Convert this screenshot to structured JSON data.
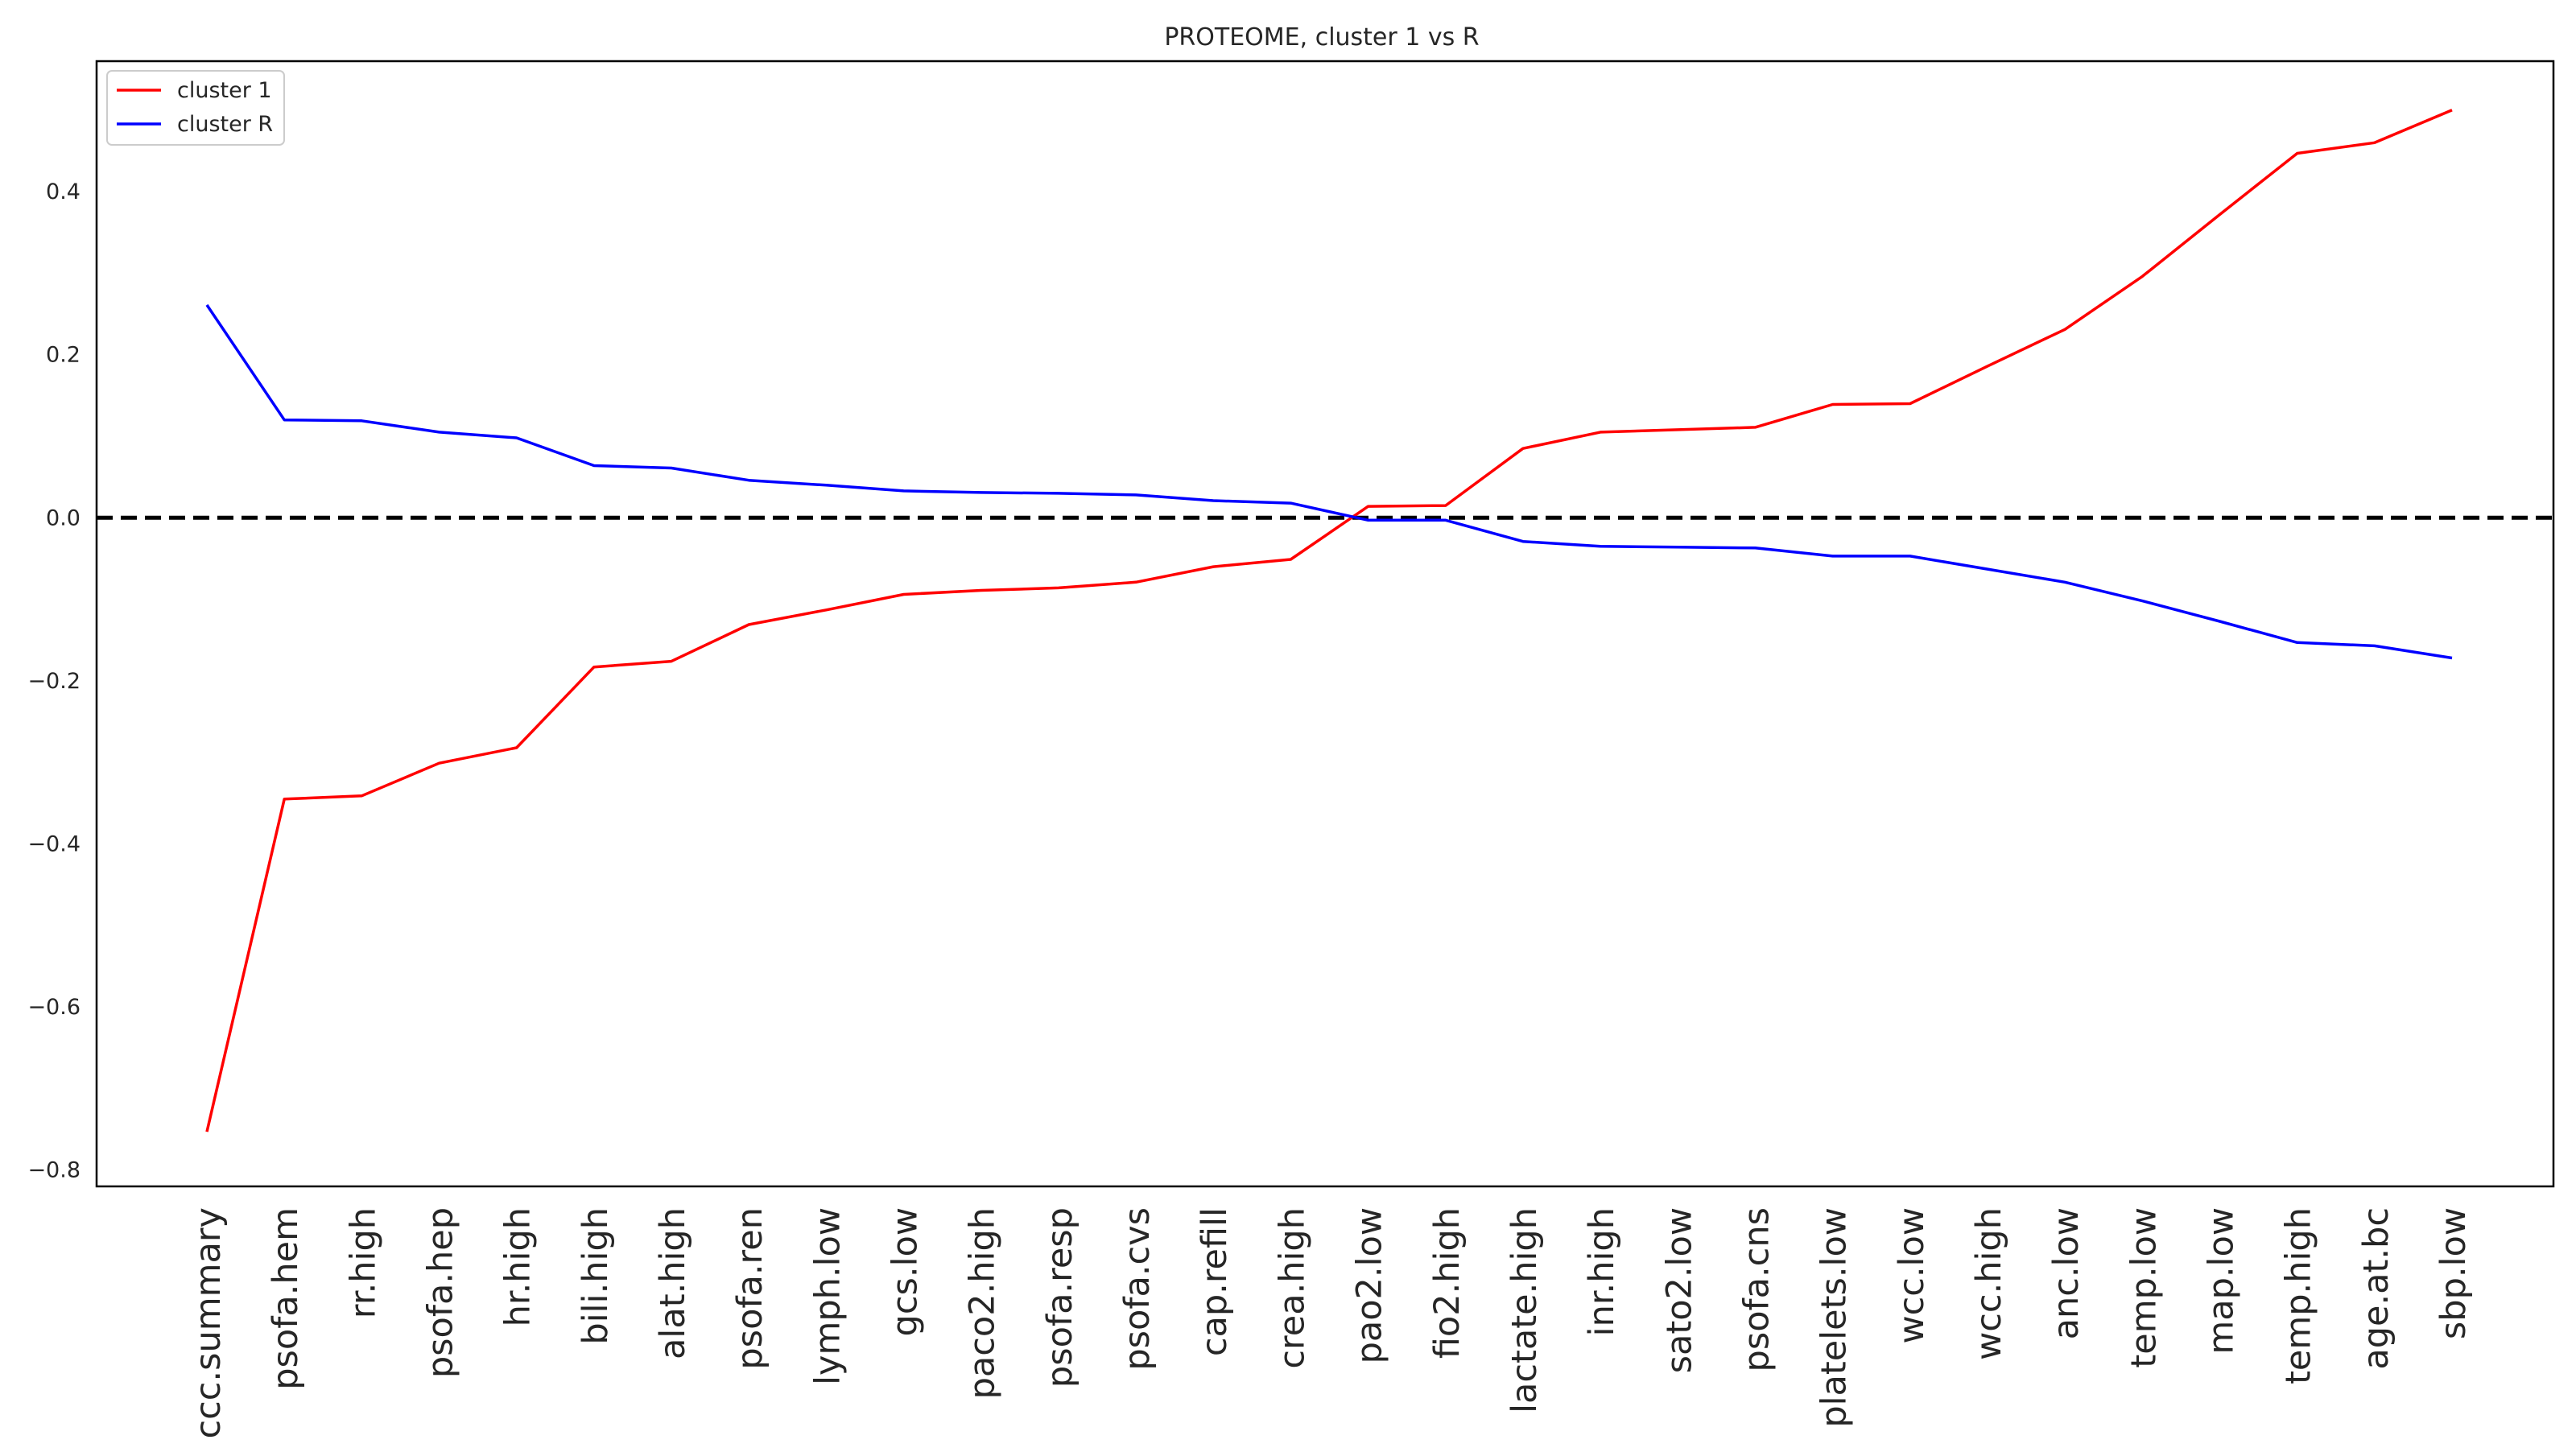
{
  "chart_data": {
    "type": "line",
    "title": "PROTEOME, cluster 1 vs R",
    "xlabel": "",
    "ylabel": "",
    "ylim": [
      -0.82,
      0.56
    ],
    "yticks": [
      -0.8,
      -0.6,
      -0.4,
      -0.2,
      0.0,
      0.2,
      0.4
    ],
    "ytick_labels": [
      "−0.8",
      "−0.6",
      "−0.4",
      "−0.2",
      "0.0",
      "0.2",
      "0.4"
    ],
    "grid": false,
    "legend_position": "top-left",
    "reference_line": {
      "y": 0.0,
      "style": "dashed",
      "color": "#000000"
    },
    "categories": [
      "ccc.summary",
      "psofa.hem",
      "rr.high",
      "psofa.hep",
      "hr.high",
      "bili.high",
      "alat.high",
      "psofa.ren",
      "lymph.low",
      "gcs.low",
      "paco2.high",
      "psofa.resp",
      "psofa.cvs",
      "cap.refill",
      "crea.high",
      "pao2.low",
      "fio2.high",
      "lactate.high",
      "inr.high",
      "sato2.low",
      "psofa.cns",
      "platelets.low",
      "wcc.low",
      "wcc.high",
      "anc.low",
      "temp.low",
      "map.low",
      "temp.high",
      "age.at.bc",
      "sbp.low"
    ],
    "series": [
      {
        "name": "cluster 1",
        "color": "#ff0000",
        "values": [
          -0.753,
          -0.345,
          -0.341,
          -0.301,
          -0.282,
          -0.183,
          -0.176,
          -0.131,
          -0.113,
          -0.094,
          -0.089,
          -0.086,
          -0.079,
          -0.06,
          -0.051,
          0.014,
          0.015,
          0.085,
          0.105,
          0.108,
          0.111,
          0.139,
          0.14,
          0.186,
          0.231,
          0.296,
          0.372,
          0.447,
          0.46,
          0.5
        ]
      },
      {
        "name": "cluster R",
        "color": "#0000ff",
        "values": [
          0.261,
          0.12,
          0.119,
          0.105,
          0.098,
          0.064,
          0.061,
          0.046,
          0.04,
          0.033,
          0.031,
          0.03,
          0.028,
          0.021,
          0.018,
          -0.003,
          -0.003,
          -0.029,
          -0.035,
          -0.036,
          -0.037,
          -0.047,
          -0.047,
          -0.063,
          -0.079,
          -0.102,
          -0.127,
          -0.153,
          -0.157,
          -0.172
        ]
      }
    ]
  }
}
